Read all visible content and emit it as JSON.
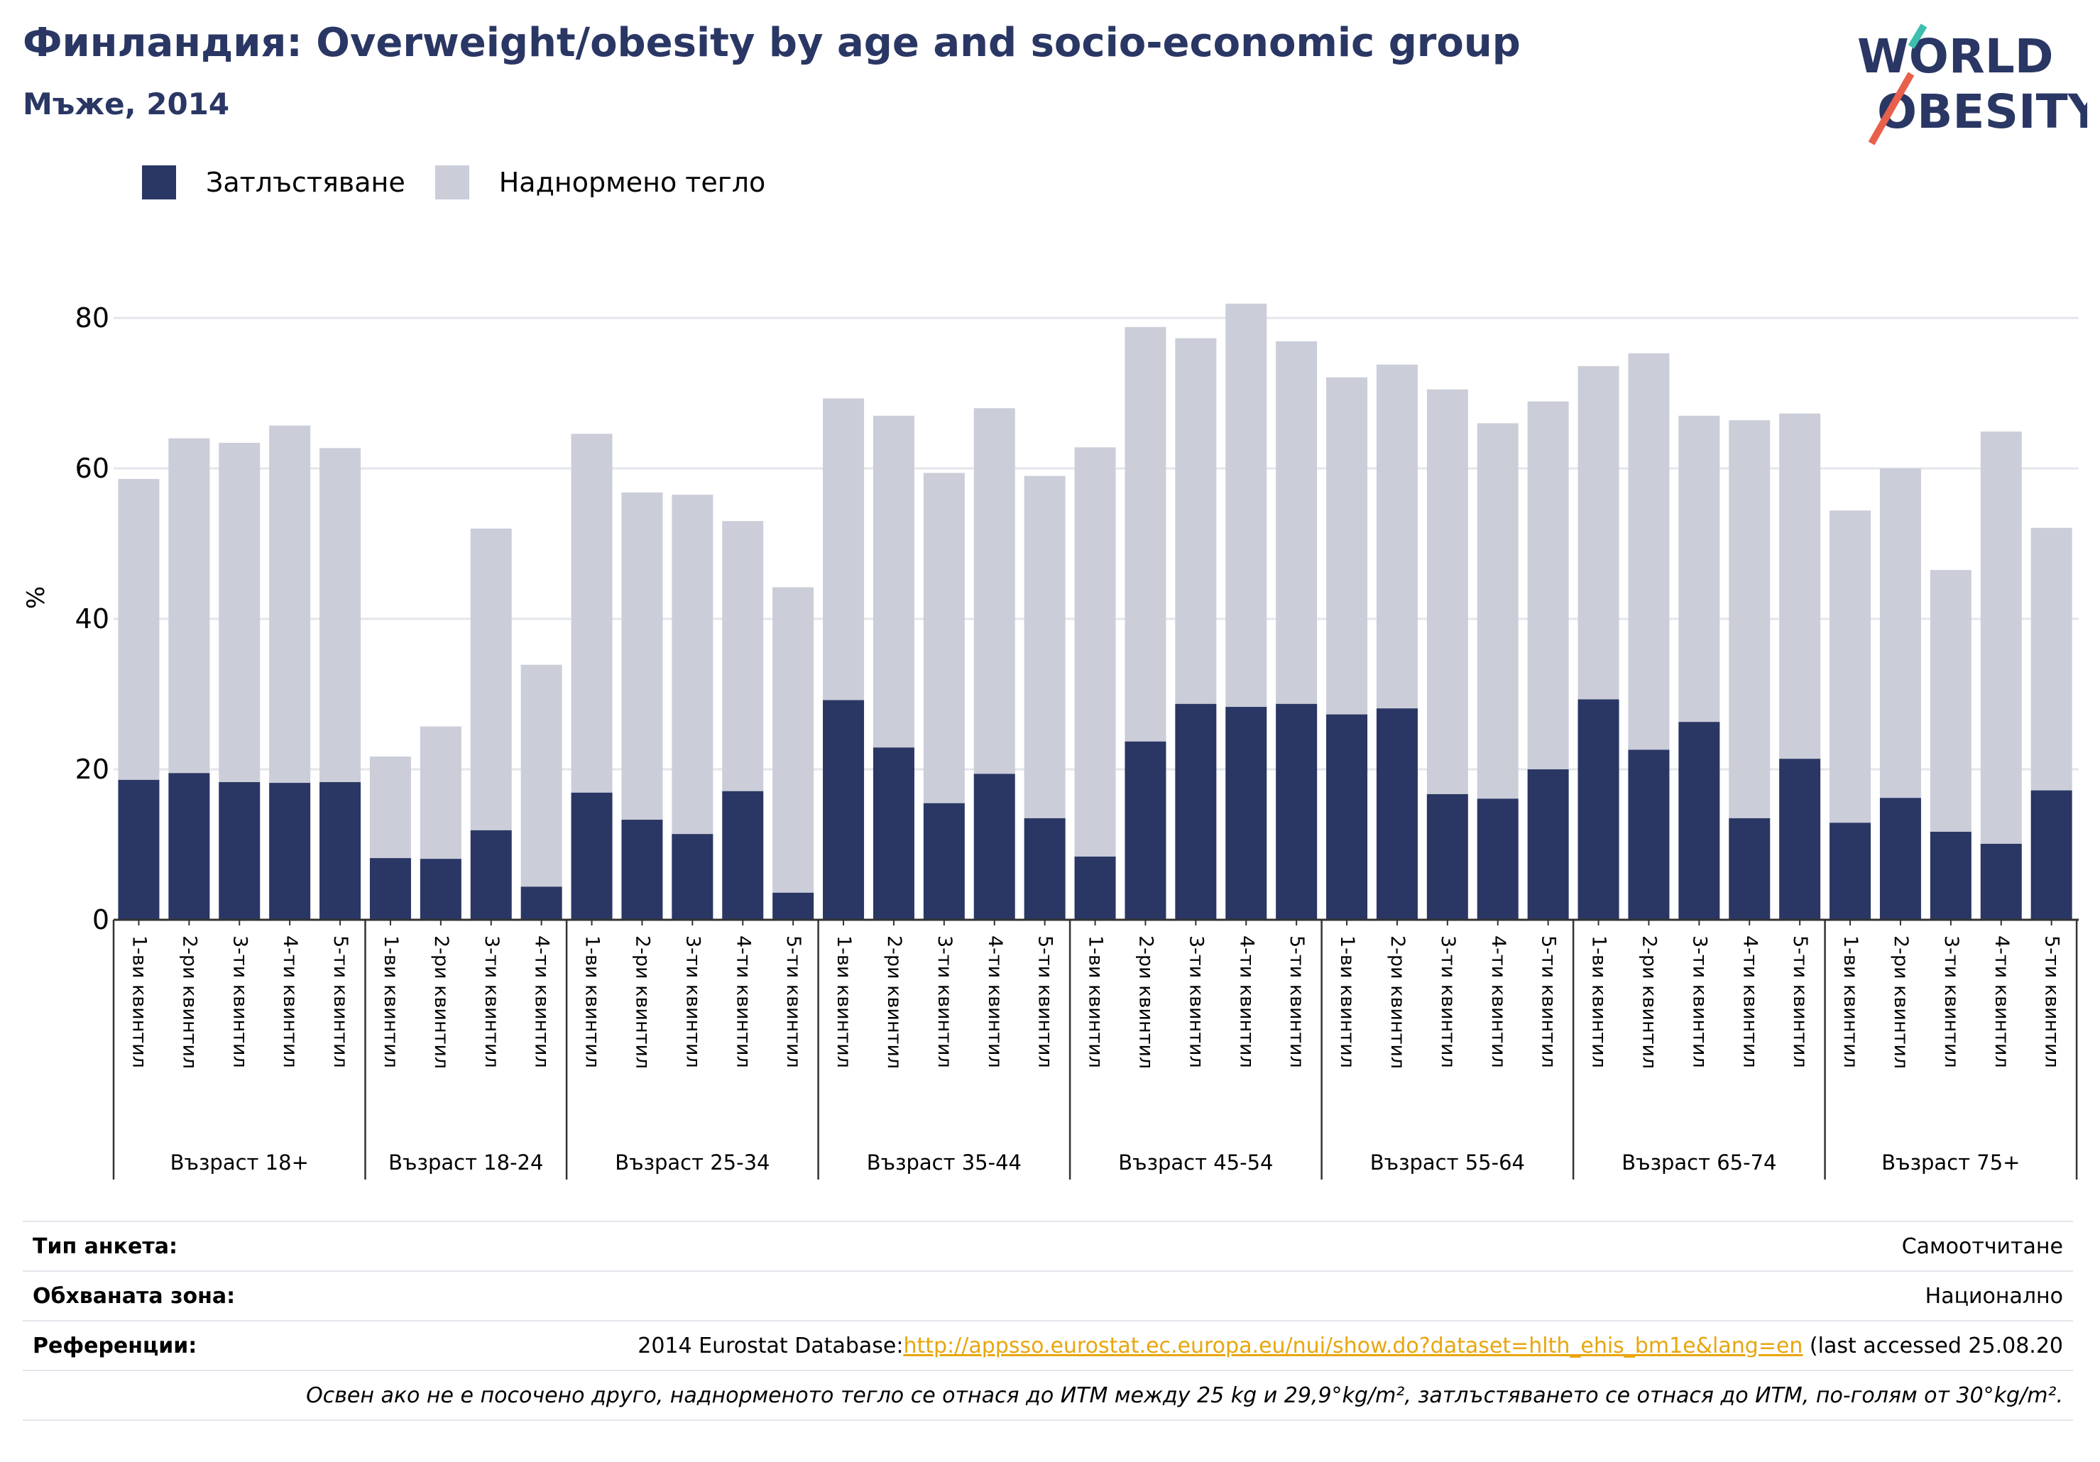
{
  "header": {
    "title": "Финландия: Overweight/obesity by age and socio-economic group",
    "subtitle": "Мъже, 2014"
  },
  "logo": {
    "line1": "WORLD",
    "line2": "OBESITY"
  },
  "legend": {
    "obesity": "Затлъстяване",
    "overweight": "Наднормено тегло"
  },
  "colors": {
    "obesity": "#2a3764",
    "overweight": "#cbcdd9",
    "grid": "#e4e6ec",
    "link": "#e8a60e",
    "title": "#2a3764"
  },
  "chart_data": {
    "type": "bar",
    "stacked": true,
    "ylabel": "%",
    "ylim": [
      0,
      85
    ],
    "yticks": [
      0,
      20,
      40,
      60,
      80
    ],
    "grid": true,
    "legend_position": "top-left",
    "groups": [
      {
        "label": "Възраст 18+",
        "categories": [
          "1-ви квинтил",
          "2-ри квинтил",
          "3-ти квинтил",
          "4-ти квинтил",
          "5-ти квинтил"
        ],
        "obesity": [
          18.6,
          19.5,
          18.3,
          18.2,
          18.3
        ],
        "overweight": [
          58.6,
          64.0,
          63.4,
          65.7,
          62.7
        ]
      },
      {
        "label": "Възраст 18-24",
        "categories": [
          "1-ви квинтил",
          "2-ри квинтил",
          "3-ти квинтил",
          "4-ти квинтил"
        ],
        "obesity": [
          8.2,
          8.1,
          11.9,
          4.4
        ],
        "overweight": [
          21.7,
          25.7,
          52.0,
          33.9
        ]
      },
      {
        "label": "Възраст 25-34",
        "categories": [
          "1-ви квинтил",
          "2-ри квинтил",
          "3-ти квинтил",
          "4-ти квинтил",
          "5-ти квинтил"
        ],
        "obesity": [
          16.9,
          13.3,
          11.4,
          17.1,
          3.6
        ],
        "overweight": [
          64.6,
          56.8,
          56.5,
          53.0,
          44.2
        ]
      },
      {
        "label": "Възраст 35-44",
        "categories": [
          "1-ви квинтил",
          "2-ри квинтил",
          "3-ти квинтил",
          "4-ти квинтил",
          "5-ти квинтил"
        ],
        "obesity": [
          29.2,
          22.9,
          15.5,
          19.4,
          13.5
        ],
        "overweight": [
          69.3,
          67.0,
          59.4,
          68.0,
          59.0
        ]
      },
      {
        "label": "Възраст 45-54",
        "categories": [
          "1-ви квинтил",
          "2-ри квинтил",
          "3-ти квинтил",
          "4-ти квинтил",
          "5-ти квинтил"
        ],
        "obesity": [
          8.4,
          23.7,
          28.7,
          28.3,
          28.7
        ],
        "overweight": [
          62.8,
          78.8,
          77.3,
          81.9,
          76.9
        ]
      },
      {
        "label": "Възраст 55-64",
        "categories": [
          "1-ви квинтил",
          "2-ри квинтил",
          "3-ти квинтил",
          "4-ти квинтил",
          "5-ти квинтил"
        ],
        "obesity": [
          27.3,
          28.1,
          16.7,
          16.1,
          20.0
        ],
        "overweight": [
          72.1,
          73.8,
          70.5,
          66.0,
          68.9
        ]
      },
      {
        "label": "Възраст 65-74",
        "categories": [
          "1-ви квинтил",
          "2-ри квинтил",
          "3-ти квинтил",
          "4-ти квинтил",
          "5-ти квинтил"
        ],
        "obesity": [
          29.3,
          22.6,
          26.3,
          13.5,
          21.4
        ],
        "overweight": [
          73.6,
          75.3,
          67.0,
          66.4,
          67.3
        ]
      },
      {
        "label": "Възраст 75+",
        "categories": [
          "1-ви квинтил",
          "2-ри квинтил",
          "3-ти квинтил",
          "4-ти квинтил",
          "5-ти квинтил"
        ],
        "obesity": [
          12.9,
          16.2,
          11.7,
          10.1,
          17.2
        ],
        "overweight": [
          54.4,
          60.0,
          46.5,
          64.9,
          52.1
        ]
      }
    ]
  },
  "info": {
    "survey_label": "Тип анкета:",
    "survey_value": "Самоотчитане",
    "area_label": "Обхваната зона:",
    "area_value": "Национално",
    "ref_label": "Референции:",
    "ref_prefix": "2014 Eurostat Database:",
    "ref_link": "http://appsso.eurostat.ec.europa.eu/nui/show.do?dataset=hlth_ehis_bm1e&lang=en",
    "ref_suffix": " (last accessed 25.08.20",
    "note": "Освен ако не е посочено друго, наднорменото тегло се отнася до ИТМ между 25 kg и 29,9°kg/m², затлъстяването се отнася до ИТМ, по-голям от 30°kg/m²."
  }
}
